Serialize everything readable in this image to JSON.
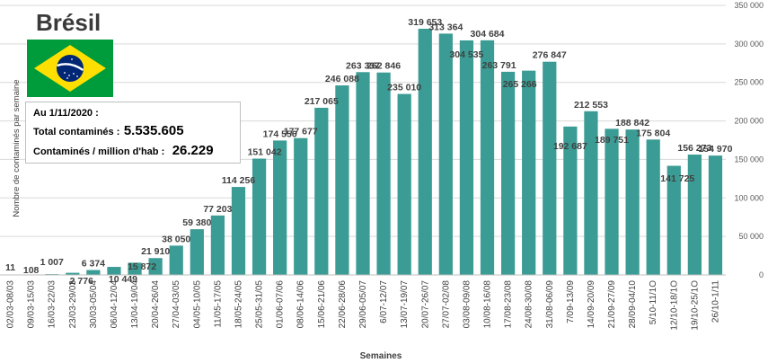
{
  "title": "Brésil",
  "info": {
    "date_line": "Au 1/11/2020 :",
    "total_label": "Total contaminés :",
    "total_value": "5.535.605",
    "per_million_label": "Contaminés / million d'hab :",
    "per_million_value": "26.229"
  },
  "colors": {
    "bar": "#3a9c94",
    "flag_green": "#009b3a",
    "flag_yellow": "#fedf00",
    "flag_blue": "#002776"
  },
  "chart_data": {
    "type": "bar",
    "xlabel": "Semaines",
    "ylabel": "Nombre de contaminés par semaine",
    "ylim": [
      0,
      350000
    ],
    "yticks": [
      0,
      50000,
      100000,
      150000,
      200000,
      250000,
      300000,
      350000
    ],
    "ytick_labels": [
      "0",
      "50 000",
      "100 000",
      "150 000",
      "200 000",
      "250 000",
      "300 000",
      "350 000"
    ],
    "grid": true,
    "categories": [
      "02/03-08/03",
      "09/03-15/03",
      "16/03-22/03",
      "23/03-29/03",
      "30/03-05/04",
      "06/04-12/04",
      "13/04-19/04",
      "20/04-26/04",
      "27/04-03/05",
      "04/05-10/05",
      "11/05-17/05",
      "18/05-24/05",
      "25/05-31/05",
      "01/06-07/06",
      "08/06-14/06",
      "15/06-21/06",
      "22/06-28/06",
      "29/06-05/07",
      "6/07-12/07",
      "13/07-19/07",
      "20/07-26/07",
      "27/07-02/08",
      "03/08-09/08",
      "10/08-16/08",
      "17/08-23/08",
      "24/08-30/08",
      "31/08-06/09",
      "7/09-13/09",
      "14/09-20/09",
      "21/09-27/09",
      "28/09-04/10",
      "5/10-11/1O",
      "12/10-18/1O",
      "19/10-25/1O",
      "26/10-1/11"
    ],
    "values": [
      11,
      108,
      1007,
      2776,
      6374,
      10449,
      15872,
      21910,
      38050,
      59380,
      77203,
      114256,
      151042,
      174556,
      177677,
      217065,
      246088,
      263337,
      262846,
      235010,
      319653,
      313364,
      304535,
      304684,
      263791,
      265266,
      276847,
      192687,
      212553,
      189751,
      188842,
      175804,
      141725,
      156273,
      154970
    ],
    "value_labels": [
      "11",
      "108",
      "1 007",
      "2 776",
      "6 374",
      "10 449",
      "15 872",
      "21 910",
      "38 050",
      "59 380",
      "77 203",
      "114 256",
      "151 042",
      "174 556",
      "177 677",
      "217 065",
      "246 088",
      "263 337",
      "262 846",
      "235 010",
      "319 653",
      "313 364",
      "304 535",
      "304 684",
      "263 791",
      "265 266",
      "276 847",
      "192 687",
      "212 553",
      "189 751",
      "188 842",
      "175 804",
      "141 725",
      "156 273",
      "154 970"
    ]
  }
}
